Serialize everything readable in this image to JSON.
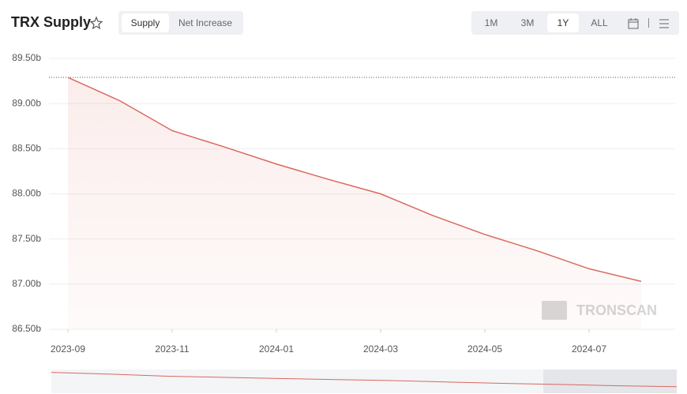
{
  "ui": {
    "title": "TRX Supply",
    "tabs": [
      "Supply",
      "Net Increase"
    ],
    "ranges": [
      "1M",
      "3M",
      "1Y",
      "ALL"
    ],
    "watermark": "TRONSCAN"
  },
  "chart_data": {
    "type": "area",
    "color": "#d9695f",
    "x": [
      "2023-09",
      "2023-10",
      "2023-11",
      "2023-12",
      "2024-01",
      "2024-02",
      "2024-03",
      "2024-04",
      "2024-05",
      "2024-06",
      "2024-07",
      "2024-08"
    ],
    "series": [
      {
        "name": "Supply",
        "color": "#d9695f",
        "values": [
          89.29,
          89.03,
          88.7,
          88.52,
          88.33,
          88.16,
          88.0,
          87.76,
          87.55,
          87.37,
          87.17,
          87.03
        ]
      }
    ],
    "xlim": [
      "2023-09",
      "2024-08"
    ],
    "xticks": [
      "2023-09",
      "2023-11",
      "2024-01",
      "2024-03",
      "2024-05",
      "2024-07"
    ],
    "ylim": [
      86.5,
      89.5
    ],
    "yticks": [
      {
        "value": 86.5,
        "label": "86.50b"
      },
      {
        "value": 87,
        "label": "87.00b"
      },
      {
        "value": 87.5,
        "label": "87.50b"
      },
      {
        "value": 88,
        "label": "88.00b"
      },
      {
        "value": 88.5,
        "label": "88.50b"
      },
      {
        "value": 89,
        "label": "89.00b"
      },
      {
        "value": 89.5,
        "label": "89.50b"
      }
    ],
    "grid": true
  }
}
